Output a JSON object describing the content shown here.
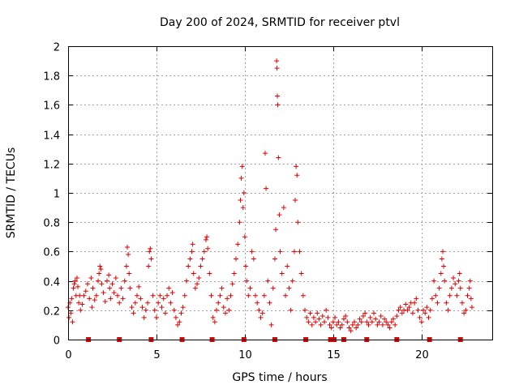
{
  "chart_data": {
    "type": "scatter",
    "title": "Day 200 of 2024, SRMTID for receiver ptvl",
    "xlabel": "GPS time / hours",
    "ylabel": "SRMTID / TECUs",
    "xlim": [
      0,
      24
    ],
    "ylim": [
      0,
      2
    ],
    "xticks": [
      0,
      5,
      10,
      15,
      20
    ],
    "xtick_labels": [
      "0",
      "5",
      "10",
      "15",
      "20"
    ],
    "yticks": [
      0,
      0.2,
      0.4,
      0.6,
      0.8,
      1.0,
      1.2,
      1.4,
      1.6,
      1.8,
      2.0
    ],
    "ytick_labels": [
      "0",
      "0.2",
      "0.4",
      "0.6",
      "0.8",
      "1",
      "1.2",
      "1.4",
      "1.6",
      "1.8",
      "2"
    ],
    "grid": true,
    "marker": "+",
    "color": "#e00000",
    "series": [
      {
        "name": "SRMTID",
        "points": [
          [
            0.0,
            0.22
          ],
          [
            0.05,
            0.15
          ],
          [
            0.1,
            0.25
          ],
          [
            0.15,
            0.18
          ],
          [
            0.2,
            0.28
          ],
          [
            0.25,
            0.12
          ],
          [
            0.3,
            0.35
          ],
          [
            0.35,
            0.38
          ],
          [
            0.4,
            0.4
          ],
          [
            0.45,
            0.3
          ],
          [
            0.5,
            0.42
          ],
          [
            0.55,
            0.36
          ],
          [
            0.6,
            0.25
          ],
          [
            0.65,
            0.3
          ],
          [
            0.7,
            0.2
          ],
          [
            0.8,
            0.24
          ],
          [
            0.9,
            0.3
          ],
          [
            1.0,
            0.33
          ],
          [
            1.1,
            0.38
          ],
          [
            1.2,
            0.28
          ],
          [
            1.3,
            0.42
          ],
          [
            1.35,
            0.22
          ],
          [
            1.4,
            0.35
          ],
          [
            1.5,
            0.27
          ],
          [
            1.6,
            0.3
          ],
          [
            1.7,
            0.4
          ],
          [
            1.75,
            0.45
          ],
          [
            1.8,
            0.5
          ],
          [
            1.85,
            0.48
          ],
          [
            1.9,
            0.38
          ],
          [
            2.0,
            0.32
          ],
          [
            2.1,
            0.26
          ],
          [
            2.2,
            0.4
          ],
          [
            2.3,
            0.44
          ],
          [
            2.35,
            0.35
          ],
          [
            2.4,
            0.28
          ],
          [
            2.5,
            0.38
          ],
          [
            2.6,
            0.32
          ],
          [
            2.7,
            0.42
          ],
          [
            2.8,
            0.3
          ],
          [
            2.9,
            0.25
          ],
          [
            3.0,
            0.35
          ],
          [
            3.1,
            0.28
          ],
          [
            3.2,
            0.4
          ],
          [
            3.3,
            0.5
          ],
          [
            3.35,
            0.63
          ],
          [
            3.4,
            0.58
          ],
          [
            3.45,
            0.45
          ],
          [
            3.5,
            0.35
          ],
          [
            3.6,
            0.22
          ],
          [
            3.7,
            0.18
          ],
          [
            3.8,
            0.25
          ],
          [
            3.9,
            0.3
          ],
          [
            4.0,
            0.36
          ],
          [
            4.1,
            0.28
          ],
          [
            4.2,
            0.22
          ],
          [
            4.3,
            0.15
          ],
          [
            4.4,
            0.2
          ],
          [
            4.5,
            0.25
          ],
          [
            4.55,
            0.5
          ],
          [
            4.6,
            0.6
          ],
          [
            4.65,
            0.62
          ],
          [
            4.7,
            0.55
          ],
          [
            4.8,
            0.3
          ],
          [
            4.9,
            0.2
          ],
          [
            5.0,
            0.15
          ],
          [
            5.1,
            0.25
          ],
          [
            5.2,
            0.3
          ],
          [
            5.3,
            0.22
          ],
          [
            5.4,
            0.28
          ],
          [
            5.5,
            0.18
          ],
          [
            5.6,
            0.3
          ],
          [
            5.7,
            0.35
          ],
          [
            5.8,
            0.25
          ],
          [
            5.9,
            0.32
          ],
          [
            6.0,
            0.2
          ],
          [
            6.1,
            0.15
          ],
          [
            6.2,
            0.1
          ],
          [
            6.3,
            0.12
          ],
          [
            6.4,
            0.18
          ],
          [
            6.5,
            0.22
          ],
          [
            6.6,
            0.3
          ],
          [
            6.7,
            0.4
          ],
          [
            6.8,
            0.5
          ],
          [
            6.9,
            0.55
          ],
          [
            7.0,
            0.6
          ],
          [
            7.05,
            0.65
          ],
          [
            7.1,
            0.45
          ],
          [
            7.2,
            0.35
          ],
          [
            7.3,
            0.38
          ],
          [
            7.4,
            0.42
          ],
          [
            7.5,
            0.5
          ],
          [
            7.6,
            0.55
          ],
          [
            7.7,
            0.6
          ],
          [
            7.8,
            0.68
          ],
          [
            7.85,
            0.7
          ],
          [
            7.9,
            0.62
          ],
          [
            8.0,
            0.45
          ],
          [
            8.1,
            0.3
          ],
          [
            8.2,
            0.15
          ],
          [
            8.3,
            0.12
          ],
          [
            8.4,
            0.2
          ],
          [
            8.5,
            0.25
          ],
          [
            8.6,
            0.3
          ],
          [
            8.7,
            0.35
          ],
          [
            8.8,
            0.22
          ],
          [
            8.9,
            0.18
          ],
          [
            9.0,
            0.28
          ],
          [
            9.1,
            0.2
          ],
          [
            9.2,
            0.3
          ],
          [
            9.3,
            0.38
          ],
          [
            9.4,
            0.45
          ],
          [
            9.5,
            0.55
          ],
          [
            9.6,
            0.65
          ],
          [
            9.7,
            0.8
          ],
          [
            9.75,
            0.95
          ],
          [
            9.8,
            1.1
          ],
          [
            9.85,
            1.18
          ],
          [
            9.9,
            0.9
          ],
          [
            9.95,
            1.0
          ],
          [
            10.0,
            0.7
          ],
          [
            10.05,
            0.5
          ],
          [
            10.1,
            0.4
          ],
          [
            10.2,
            0.3
          ],
          [
            10.3,
            0.35
          ],
          [
            10.4,
            0.6
          ],
          [
            10.5,
            0.55
          ],
          [
            10.6,
            0.3
          ],
          [
            10.7,
            0.25
          ],
          [
            10.8,
            0.2
          ],
          [
            10.9,
            0.15
          ],
          [
            11.0,
            0.18
          ],
          [
            11.1,
            0.3
          ],
          [
            11.15,
            1.27
          ],
          [
            11.2,
            1.03
          ],
          [
            11.3,
            0.4
          ],
          [
            11.4,
            0.25
          ],
          [
            11.5,
            0.1
          ],
          [
            11.6,
            0.35
          ],
          [
            11.7,
            0.55
          ],
          [
            11.75,
            0.75
          ],
          [
            11.8,
            1.9
          ],
          [
            11.82,
            1.85
          ],
          [
            11.84,
            1.66
          ],
          [
            11.86,
            1.6
          ],
          [
            11.9,
            1.24
          ],
          [
            11.95,
            0.85
          ],
          [
            12.0,
            0.6
          ],
          [
            12.1,
            0.45
          ],
          [
            12.2,
            0.9
          ],
          [
            12.3,
            0.3
          ],
          [
            12.4,
            0.5
          ],
          [
            12.5,
            0.35
          ],
          [
            12.6,
            0.2
          ],
          [
            12.7,
            0.4
          ],
          [
            12.8,
            0.6
          ],
          [
            12.85,
            0.95
          ],
          [
            12.9,
            1.18
          ],
          [
            12.95,
            1.12
          ],
          [
            13.0,
            0.8
          ],
          [
            13.1,
            0.6
          ],
          [
            13.2,
            0.45
          ],
          [
            13.3,
            0.3
          ],
          [
            13.4,
            0.2
          ],
          [
            13.5,
            0.15
          ],
          [
            13.6,
            0.12
          ],
          [
            13.7,
            0.18
          ],
          [
            13.8,
            0.1
          ],
          [
            13.9,
            0.15
          ],
          [
            14.0,
            0.12
          ],
          [
            14.1,
            0.18
          ],
          [
            14.2,
            0.14
          ],
          [
            14.3,
            0.1
          ],
          [
            14.4,
            0.16
          ],
          [
            14.5,
            0.12
          ],
          [
            14.6,
            0.2
          ],
          [
            14.7,
            0.15
          ],
          [
            14.8,
            0.1
          ],
          [
            14.9,
            0.08
          ],
          [
            15.0,
            0.12
          ],
          [
            15.1,
            0.15
          ],
          [
            15.2,
            0.1
          ],
          [
            15.3,
            0.12
          ],
          [
            15.4,
            0.08
          ],
          [
            15.5,
            0.1
          ],
          [
            15.6,
            0.14
          ],
          [
            15.7,
            0.16
          ],
          [
            15.8,
            0.12
          ],
          [
            15.9,
            0.08
          ],
          [
            16.0,
            0.06
          ],
          [
            16.1,
            0.1
          ],
          [
            16.2,
            0.12
          ],
          [
            16.3,
            0.08
          ],
          [
            16.4,
            0.1
          ],
          [
            16.5,
            0.14
          ],
          [
            16.6,
            0.12
          ],
          [
            16.7,
            0.16
          ],
          [
            16.8,
            0.18
          ],
          [
            16.9,
            0.12
          ],
          [
            17.0,
            0.1
          ],
          [
            17.1,
            0.15
          ],
          [
            17.2,
            0.12
          ],
          [
            17.3,
            0.18
          ],
          [
            17.4,
            0.14
          ],
          [
            17.5,
            0.1
          ],
          [
            17.6,
            0.12
          ],
          [
            17.7,
            0.16
          ],
          [
            17.8,
            0.1
          ],
          [
            17.9,
            0.14
          ],
          [
            18.0,
            0.12
          ],
          [
            18.1,
            0.1
          ],
          [
            18.2,
            0.08
          ],
          [
            18.3,
            0.12
          ],
          [
            18.4,
            0.14
          ],
          [
            18.5,
            0.1
          ],
          [
            18.6,
            0.16
          ],
          [
            18.7,
            0.2
          ],
          [
            18.8,
            0.22
          ],
          [
            18.9,
            0.18
          ],
          [
            19.0,
            0.2
          ],
          [
            19.1,
            0.24
          ],
          [
            19.2,
            0.2
          ],
          [
            19.3,
            0.22
          ],
          [
            19.4,
            0.25
          ],
          [
            19.5,
            0.18
          ],
          [
            19.6,
            0.25
          ],
          [
            19.7,
            0.28
          ],
          [
            19.8,
            0.2
          ],
          [
            19.9,
            0.15
          ],
          [
            20.0,
            0.12
          ],
          [
            20.1,
            0.2
          ],
          [
            20.2,
            0.18
          ],
          [
            20.3,
            0.22
          ],
          [
            20.4,
            0.15
          ],
          [
            20.5,
            0.2
          ],
          [
            20.6,
            0.28
          ],
          [
            20.7,
            0.4
          ],
          [
            20.8,
            0.3
          ],
          [
            20.9,
            0.25
          ],
          [
            21.0,
            0.35
          ],
          [
            21.1,
            0.45
          ],
          [
            21.15,
            0.55
          ],
          [
            21.2,
            0.6
          ],
          [
            21.25,
            0.5
          ],
          [
            21.3,
            0.4
          ],
          [
            21.4,
            0.25
          ],
          [
            21.5,
            0.2
          ],
          [
            21.6,
            0.3
          ],
          [
            21.7,
            0.35
          ],
          [
            21.8,
            0.42
          ],
          [
            21.9,
            0.38
          ],
          [
            22.0,
            0.3
          ],
          [
            22.1,
            0.4
          ],
          [
            22.15,
            0.45
          ],
          [
            22.2,
            0.35
          ],
          [
            22.3,
            0.25
          ],
          [
            22.4,
            0.18
          ],
          [
            22.5,
            0.2
          ],
          [
            22.6,
            0.3
          ],
          [
            22.7,
            0.35
          ],
          [
            22.75,
            0.4
          ],
          [
            22.8,
            0.28
          ],
          [
            22.85,
            0.22
          ]
        ]
      }
    ],
    "gap_markers_x": [
      1.15,
      2.9,
      4.7,
      6.45,
      8.15,
      9.95,
      11.7,
      13.45,
      14.85,
      15.05,
      15.6,
      16.9,
      18.6,
      20.45,
      22.2
    ]
  }
}
